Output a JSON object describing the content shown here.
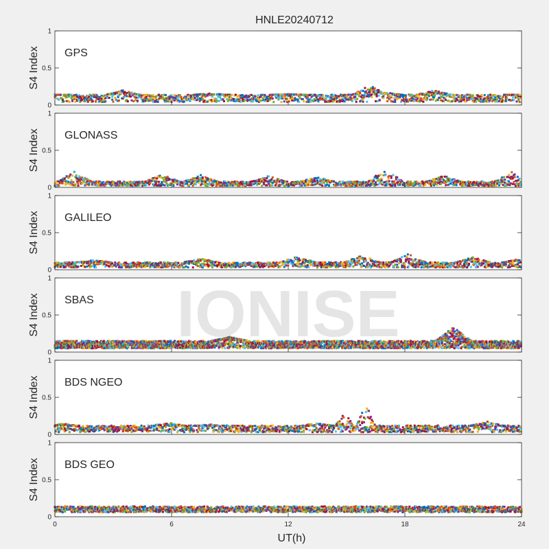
{
  "figure_title": "HNLE20240712",
  "watermark": "IONISE",
  "colors": [
    "#0072bd",
    "#d95319",
    "#edb120",
    "#7e2f8e",
    "#77ac30",
    "#4dbeee",
    "#a2142f"
  ],
  "chart_data": [
    {
      "type": "scatter",
      "label": "GPS",
      "ylabel": "S4 Index",
      "xlabel": "",
      "xlim": [
        0,
        24
      ],
      "ylim": [
        0,
        1
      ],
      "yticks": [
        "0",
        "0.5",
        "1"
      ],
      "xticks": [],
      "series_profile": {
        "baseline": [
          0.04,
          0.14
        ],
        "t": [
          0,
          3.5,
          8,
          12,
          16.2,
          17,
          19.5,
          24
        ],
        "upper": [
          0.14,
          0.2,
          0.16,
          0.15,
          0.27,
          0.17,
          0.2,
          0.14
        ]
      }
    },
    {
      "type": "scatter",
      "label": "GLONASS",
      "ylabel": "S4 Index",
      "xlabel": "",
      "xlim": [
        0,
        24
      ],
      "ylim": [
        0,
        1
      ],
      "yticks": [
        "0",
        "0.5",
        "1"
      ],
      "xticks": [],
      "series_profile": {
        "baseline": [
          0.02,
          0.08
        ],
        "t": [
          1,
          5.5,
          7.5,
          11,
          13.5,
          17,
          20,
          23.5
        ],
        "upper": [
          0.22,
          0.18,
          0.17,
          0.16,
          0.15,
          0.26,
          0.16,
          0.21
        ]
      }
    },
    {
      "type": "scatter",
      "label": "GALILEO",
      "ylabel": "S4 Index",
      "xlabel": "",
      "xlim": [
        0,
        24
      ],
      "ylim": [
        0,
        1
      ],
      "yticks": [
        "0",
        "0.5",
        "1"
      ],
      "xticks": [],
      "series_profile": {
        "baseline": [
          0.03,
          0.1
        ],
        "t": [
          2,
          7.5,
          12.5,
          15.8,
          18.2,
          21.5,
          24
        ],
        "upper": [
          0.13,
          0.15,
          0.19,
          0.2,
          0.22,
          0.17,
          0.16
        ]
      }
    },
    {
      "type": "scatter",
      "label": "SBAS",
      "ylabel": "S4 Index",
      "xlabel": "",
      "xlim": [
        0,
        24
      ],
      "ylim": [
        0,
        1
      ],
      "yticks": [
        "0",
        "0.5",
        "1"
      ],
      "xticks": [],
      "series_profile": {
        "baseline": [
          0.05,
          0.15
        ],
        "t": [
          9,
          20.5
        ],
        "upper": [
          0.2,
          0.33
        ]
      }
    },
    {
      "type": "scatter",
      "label": "BDS NGEO",
      "ylabel": "S4 Index",
      "xlabel": "",
      "xlim": [
        0,
        24
      ],
      "ylim": [
        0,
        1
      ],
      "yticks": [
        "0",
        "0.5",
        "1"
      ],
      "xticks": [],
      "series_profile": {
        "baseline": [
          0.03,
          0.12
        ],
        "t": [
          0.4,
          5.8,
          8,
          13.5,
          14.9,
          16,
          22.2
        ],
        "upper": [
          0.15,
          0.17,
          0.14,
          0.16,
          0.3,
          0.42,
          0.18
        ]
      }
    },
    {
      "type": "scatter",
      "label": "BDS GEO",
      "ylabel": "S4 Index",
      "xlabel": "UT(h)",
      "xlim": [
        0,
        24
      ],
      "ylim": [
        0,
        1
      ],
      "yticks": [
        "0",
        "0.5",
        "1"
      ],
      "xticks": [
        "0",
        "6",
        "12",
        "18",
        "24"
      ],
      "series_profile": {
        "baseline": [
          0.06,
          0.14
        ],
        "t": [],
        "upper": []
      }
    }
  ]
}
